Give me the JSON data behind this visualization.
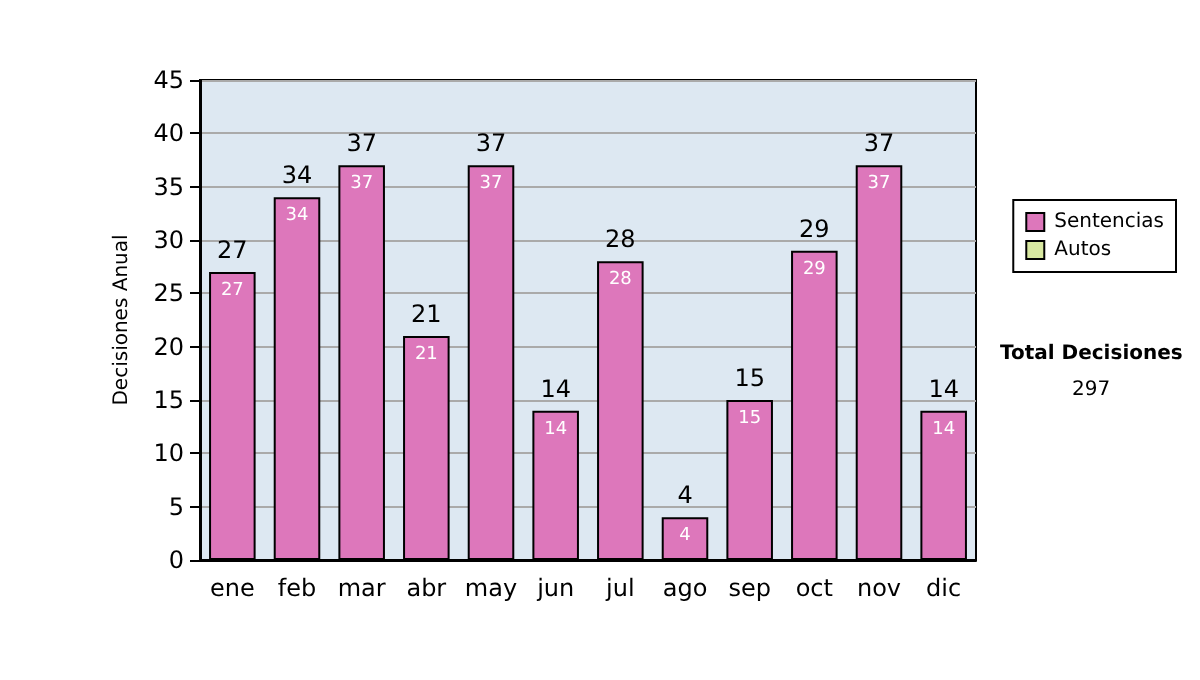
{
  "chart_data": {
    "type": "bar",
    "stacked": true,
    "ylabel": "Decisiones Anual",
    "categories": [
      "ene",
      "feb",
      "mar",
      "abr",
      "may",
      "jun",
      "jul",
      "ago",
      "sep",
      "oct",
      "nov",
      "dic"
    ],
    "series": [
      {
        "name": "Sentencias",
        "color": "#dd77bb",
        "values": [
          27,
          34,
          37,
          21,
          37,
          14,
          28,
          4,
          15,
          29,
          37,
          14
        ],
        "value_labels": [
          "27",
          "34",
          "37",
          "21",
          "37",
          "14",
          "28",
          "4",
          "15",
          "29",
          "37",
          "14"
        ]
      },
      {
        "name": "Autos",
        "color": "#d8e8a0",
        "values": [
          0,
          0,
          0,
          0,
          0,
          0,
          0,
          0,
          0,
          0,
          0,
          0
        ]
      }
    ],
    "totals": [
      "27",
      "34",
      "37",
      "21",
      "37",
      "14",
      "28",
      "4",
      "15",
      "29",
      "37",
      "14"
    ],
    "ylim": [
      0,
      45
    ],
    "yticks": [
      0,
      5,
      10,
      15,
      20,
      25,
      30,
      35,
      40,
      45
    ],
    "grid": "y",
    "legend": "right",
    "annotations": [
      "Total Decisiones",
      "297"
    ]
  }
}
